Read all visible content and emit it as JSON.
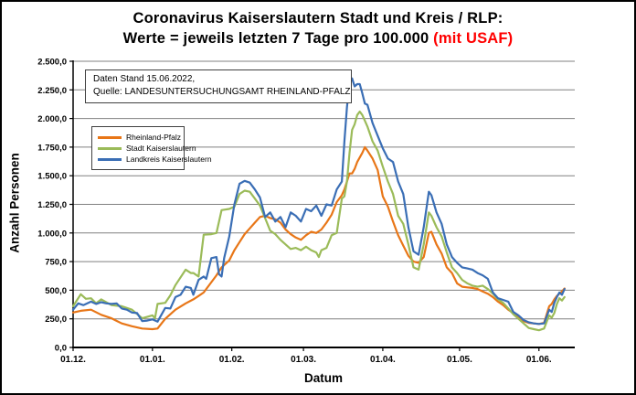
{
  "title": {
    "line1": "Coronavirus Kaiserslautern Stadt und Kreis / RLP:",
    "line2_black": "Werte = jeweils letzten 7 Tage pro 100.000 ",
    "line2_red": "(mit USAF)",
    "red_color": "#FF0000"
  },
  "annotation": {
    "line1": "Daten Stand 15.06.2022,",
    "line2": "Quelle: LANDESUNTERSUCHUNGSAMT RHEINLAND-PFALZ"
  },
  "chart_data": {
    "type": "line",
    "title": "Coronavirus Kaiserslautern Stadt und Kreis / RLP: Werte = jeweils letzten 7 Tage pro 100.000 (mit USAF)",
    "xlabel": "Datum",
    "ylabel": "Anzahl Personen",
    "ylim": [
      0,
      2500
    ],
    "grid": "horizontal",
    "grid_color": "#808080",
    "axis_color": "#000000",
    "legend_position": "upper-left-box",
    "x_unit": "days since 01.12.2021",
    "x_range_days": [
      0,
      196
    ],
    "y_ticks": [
      {
        "value": 0,
        "label": "0,0"
      },
      {
        "value": 250,
        "label": "250,0"
      },
      {
        "value": 500,
        "label": "500,0"
      },
      {
        "value": 750,
        "label": "750,0"
      },
      {
        "value": 1000,
        "label": "1.000,0"
      },
      {
        "value": 1250,
        "label": "1.250,0"
      },
      {
        "value": 1500,
        "label": "1.500,0"
      },
      {
        "value": 1750,
        "label": "1.750,0"
      },
      {
        "value": 2000,
        "label": "2.000,0"
      },
      {
        "value": 2250,
        "label": "2.250,0"
      },
      {
        "value": 2500,
        "label": "2.500,0"
      }
    ],
    "x_ticks": [
      {
        "day": 0,
        "label": "01.12."
      },
      {
        "day": 31,
        "label": "01.01."
      },
      {
        "day": 62,
        "label": "01.02."
      },
      {
        "day": 90,
        "label": "01.03."
      },
      {
        "day": 121,
        "label": "01.04."
      },
      {
        "day": 151,
        "label": "01.05."
      },
      {
        "day": 182,
        "label": "01.06."
      }
    ],
    "series": [
      {
        "name": "Rheinland-Pfalz",
        "color": "#E87617",
        "points": [
          [
            0,
            305
          ],
          [
            3,
            320
          ],
          [
            7,
            330
          ],
          [
            11,
            285
          ],
          [
            15,
            255
          ],
          [
            19,
            210
          ],
          [
            23,
            185
          ],
          [
            27,
            165
          ],
          [
            31,
            160
          ],
          [
            33,
            165
          ],
          [
            36,
            250
          ],
          [
            40,
            330
          ],
          [
            44,
            385
          ],
          [
            47,
            420
          ],
          [
            49,
            450
          ],
          [
            51,
            480
          ],
          [
            54,
            570
          ],
          [
            56,
            630
          ],
          [
            58,
            700
          ],
          [
            61,
            760
          ],
          [
            63,
            850
          ],
          [
            65,
            920
          ],
          [
            67,
            990
          ],
          [
            69,
            1040
          ],
          [
            71,
            1090
          ],
          [
            73,
            1140
          ],
          [
            75,
            1150
          ],
          [
            77,
            1130
          ],
          [
            79,
            1120
          ],
          [
            81,
            1090
          ],
          [
            83,
            1030
          ],
          [
            85,
            990
          ],
          [
            87,
            960
          ],
          [
            89,
            940
          ],
          [
            91,
            980
          ],
          [
            93,
            1010
          ],
          [
            95,
            1000
          ],
          [
            97,
            1030
          ],
          [
            99,
            1090
          ],
          [
            101,
            1160
          ],
          [
            103,
            1270
          ],
          [
            105,
            1330
          ],
          [
            106,
            1380
          ],
          [
            107,
            1450
          ],
          [
            108,
            1520
          ],
          [
            109,
            1520
          ],
          [
            110,
            1560
          ],
          [
            111,
            1620
          ],
          [
            112,
            1660
          ],
          [
            113,
            1700
          ],
          [
            114,
            1750
          ],
          [
            115,
            1720
          ],
          [
            117,
            1650
          ],
          [
            119,
            1550
          ],
          [
            121,
            1320
          ],
          [
            123,
            1230
          ],
          [
            125,
            1100
          ],
          [
            127,
            980
          ],
          [
            129,
            890
          ],
          [
            131,
            800
          ],
          [
            133,
            750
          ],
          [
            135,
            740
          ],
          [
            137,
            790
          ],
          [
            139,
            1000
          ],
          [
            140,
            1010
          ],
          [
            142,
            900
          ],
          [
            144,
            820
          ],
          [
            146,
            700
          ],
          [
            148,
            650
          ],
          [
            150,
            560
          ],
          [
            152,
            530
          ],
          [
            154,
            525
          ],
          [
            156,
            520
          ],
          [
            158,
            510
          ],
          [
            160,
            490
          ],
          [
            162,
            470
          ],
          [
            164,
            440
          ],
          [
            166,
            400
          ],
          [
            168,
            370
          ],
          [
            170,
            330
          ],
          [
            172,
            300
          ],
          [
            174,
            260
          ],
          [
            176,
            230
          ],
          [
            178,
            215
          ],
          [
            180,
            210
          ],
          [
            182,
            205
          ],
          [
            184,
            215
          ],
          [
            186,
            360
          ],
          [
            187,
            380
          ],
          [
            188,
            420
          ],
          [
            189,
            450
          ],
          [
            190,
            470
          ],
          [
            191,
            490
          ],
          [
            192,
            515
          ]
        ]
      },
      {
        "name": "Stadt Kaiserslautern",
        "color": "#9BBB59",
        "points": [
          [
            0,
            360
          ],
          [
            3,
            465
          ],
          [
            5,
            425
          ],
          [
            7,
            430
          ],
          [
            9,
            385
          ],
          [
            11,
            420
          ],
          [
            15,
            370
          ],
          [
            19,
            360
          ],
          [
            23,
            330
          ],
          [
            27,
            255
          ],
          [
            31,
            280
          ],
          [
            32,
            255
          ],
          [
            33,
            380
          ],
          [
            36,
            390
          ],
          [
            38,
            455
          ],
          [
            40,
            545
          ],
          [
            44,
            680
          ],
          [
            46,
            650
          ],
          [
            47,
            650
          ],
          [
            49,
            620
          ],
          [
            51,
            985
          ],
          [
            54,
            990
          ],
          [
            56,
            1000
          ],
          [
            58,
            1200
          ],
          [
            61,
            1210
          ],
          [
            63,
            1230
          ],
          [
            65,
            1340
          ],
          [
            67,
            1370
          ],
          [
            69,
            1360
          ],
          [
            71,
            1300
          ],
          [
            73,
            1240
          ],
          [
            75,
            1130
          ],
          [
            77,
            1020
          ],
          [
            79,
            990
          ],
          [
            81,
            940
          ],
          [
            83,
            900
          ],
          [
            85,
            860
          ],
          [
            87,
            870
          ],
          [
            89,
            850
          ],
          [
            91,
            880
          ],
          [
            93,
            850
          ],
          [
            95,
            830
          ],
          [
            96,
            790
          ],
          [
            97,
            850
          ],
          [
            99,
            870
          ],
          [
            101,
            980
          ],
          [
            103,
            1000
          ],
          [
            105,
            1300
          ],
          [
            106,
            1320
          ],
          [
            107,
            1450
          ],
          [
            108,
            1700
          ],
          [
            109,
            1900
          ],
          [
            110,
            1950
          ],
          [
            111,
            2030
          ],
          [
            112,
            2060
          ],
          [
            113,
            2030
          ],
          [
            114,
            1980
          ],
          [
            115,
            1930
          ],
          [
            117,
            1800
          ],
          [
            119,
            1720
          ],
          [
            121,
            1580
          ],
          [
            123,
            1450
          ],
          [
            125,
            1340
          ],
          [
            127,
            1150
          ],
          [
            129,
            1080
          ],
          [
            131,
            900
          ],
          [
            133,
            700
          ],
          [
            135,
            680
          ],
          [
            137,
            900
          ],
          [
            139,
            1180
          ],
          [
            140,
            1150
          ],
          [
            142,
            1050
          ],
          [
            144,
            970
          ],
          [
            146,
            830
          ],
          [
            148,
            700
          ],
          [
            150,
            650
          ],
          [
            152,
            590
          ],
          [
            154,
            560
          ],
          [
            156,
            540
          ],
          [
            158,
            530
          ],
          [
            160,
            540
          ],
          [
            162,
            510
          ],
          [
            164,
            470
          ],
          [
            166,
            420
          ],
          [
            168,
            390
          ],
          [
            170,
            340
          ],
          [
            172,
            290
          ],
          [
            174,
            250
          ],
          [
            176,
            210
          ],
          [
            178,
            170
          ],
          [
            180,
            160
          ],
          [
            182,
            150
          ],
          [
            184,
            165
          ],
          [
            186,
            280
          ],
          [
            187,
            260
          ],
          [
            188,
            300
          ],
          [
            189,
            380
          ],
          [
            190,
            430
          ],
          [
            191,
            410
          ],
          [
            192,
            440
          ]
        ]
      },
      {
        "name": "Landkreis Kaiserslautern",
        "color": "#3A6EB5",
        "points": [
          [
            0,
            330
          ],
          [
            2,
            385
          ],
          [
            4,
            370
          ],
          [
            7,
            400
          ],
          [
            9,
            380
          ],
          [
            11,
            395
          ],
          [
            13,
            385
          ],
          [
            15,
            380
          ],
          [
            17,
            385
          ],
          [
            19,
            340
          ],
          [
            21,
            330
          ],
          [
            23,
            305
          ],
          [
            25,
            300
          ],
          [
            27,
            230
          ],
          [
            29,
            235
          ],
          [
            31,
            245
          ],
          [
            33,
            225
          ],
          [
            36,
            345
          ],
          [
            38,
            340
          ],
          [
            40,
            440
          ],
          [
            42,
            460
          ],
          [
            44,
            530
          ],
          [
            46,
            520
          ],
          [
            47,
            460
          ],
          [
            49,
            590
          ],
          [
            51,
            620
          ],
          [
            52,
            600
          ],
          [
            54,
            780
          ],
          [
            56,
            790
          ],
          [
            57,
            640
          ],
          [
            58,
            620
          ],
          [
            59,
            780
          ],
          [
            61,
            970
          ],
          [
            63,
            1250
          ],
          [
            65,
            1430
          ],
          [
            67,
            1455
          ],
          [
            69,
            1440
          ],
          [
            71,
            1380
          ],
          [
            73,
            1310
          ],
          [
            75,
            1140
          ],
          [
            77,
            1180
          ],
          [
            79,
            1100
          ],
          [
            81,
            1140
          ],
          [
            83,
            1050
          ],
          [
            85,
            1180
          ],
          [
            87,
            1150
          ],
          [
            89,
            1100
          ],
          [
            91,
            1210
          ],
          [
            93,
            1190
          ],
          [
            95,
            1240
          ],
          [
            97,
            1150
          ],
          [
            99,
            1250
          ],
          [
            101,
            1240
          ],
          [
            103,
            1380
          ],
          [
            105,
            1450
          ],
          [
            106,
            1800
          ],
          [
            107,
            2100
          ],
          [
            108,
            2320
          ],
          [
            109,
            2350
          ],
          [
            110,
            2280
          ],
          [
            111,
            2300
          ],
          [
            112,
            2300
          ],
          [
            113,
            2220
          ],
          [
            114,
            2130
          ],
          [
            115,
            2120
          ],
          [
            117,
            1960
          ],
          [
            119,
            1850
          ],
          [
            121,
            1740
          ],
          [
            123,
            1650
          ],
          [
            125,
            1620
          ],
          [
            127,
            1450
          ],
          [
            129,
            1340
          ],
          [
            131,
            1050
          ],
          [
            133,
            840
          ],
          [
            135,
            810
          ],
          [
            137,
            1050
          ],
          [
            139,
            1360
          ],
          [
            140,
            1330
          ],
          [
            142,
            1180
          ],
          [
            144,
            1080
          ],
          [
            146,
            900
          ],
          [
            148,
            790
          ],
          [
            150,
            740
          ],
          [
            152,
            700
          ],
          [
            154,
            690
          ],
          [
            156,
            680
          ],
          [
            158,
            650
          ],
          [
            160,
            630
          ],
          [
            162,
            600
          ],
          [
            164,
            480
          ],
          [
            166,
            430
          ],
          [
            168,
            415
          ],
          [
            170,
            400
          ],
          [
            172,
            310
          ],
          [
            174,
            280
          ],
          [
            176,
            240
          ],
          [
            178,
            220
          ],
          [
            180,
            210
          ],
          [
            182,
            205
          ],
          [
            184,
            210
          ],
          [
            186,
            330
          ],
          [
            187,
            310
          ],
          [
            188,
            390
          ],
          [
            189,
            440
          ],
          [
            190,
            480
          ],
          [
            191,
            460
          ],
          [
            192,
            510
          ]
        ]
      }
    ]
  }
}
